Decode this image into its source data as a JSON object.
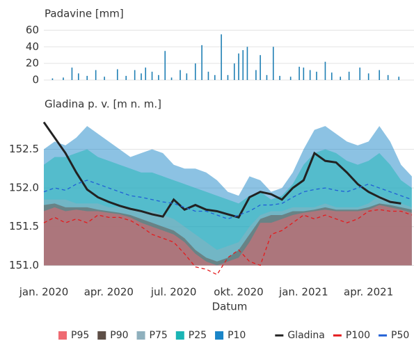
{
  "chart_data": [
    {
      "type": "bar",
      "title": "Padavine [mm]",
      "color": "#1f7fb4",
      "grid": true,
      "xlim": [
        0,
        17.1
      ],
      "ylim": [
        0,
        62
      ],
      "yticks": [
        0,
        20,
        40,
        60
      ],
      "x": [
        0.4,
        0.9,
        1.3,
        1.6,
        2.0,
        2.4,
        2.8,
        3.4,
        3.8,
        4.2,
        4.5,
        4.7,
        5.0,
        5.3,
        5.6,
        5.9,
        6.3,
        6.6,
        7.0,
        7.3,
        7.6,
        7.9,
        8.2,
        8.5,
        8.8,
        9.0,
        9.2,
        9.4,
        9.8,
        10.0,
        10.3,
        10.6,
        10.9,
        11.4,
        11.8,
        12.0,
        12.3,
        12.6,
        13.0,
        13.3,
        13.7,
        14.1,
        14.6,
        15.0,
        15.5,
        15.9,
        16.4
      ],
      "values": [
        2,
        3,
        15,
        8,
        5,
        12,
        4,
        13,
        5,
        12,
        8,
        15,
        10,
        6,
        35,
        3,
        12,
        8,
        20,
        42,
        10,
        6,
        55,
        6,
        20,
        32,
        36,
        40,
        12,
        30,
        6,
        40,
        5,
        4,
        16,
        15,
        12,
        10,
        22,
        9,
        4,
        10,
        15,
        8,
        12,
        6,
        4
      ]
    },
    {
      "type": "area",
      "title": "Gladina p. v. [m n. m.]",
      "x_label": "Datum",
      "grid": true,
      "xlim": [
        0,
        17.1
      ],
      "ylim": [
        150.85,
        152.9
      ],
      "xticks": [
        {
          "value": 0,
          "label": "jan. 2020"
        },
        {
          "value": 3,
          "label": "apr. 2020"
        },
        {
          "value": 6,
          "label": "jul. 2020"
        },
        {
          "value": 9,
          "label": "okt. 2020"
        },
        {
          "value": 12,
          "label": "jan. 2021"
        },
        {
          "value": 15,
          "label": "apr. 2021"
        }
      ],
      "yticks": [
        {
          "value": 151,
          "label": "151.0"
        },
        151.5,
        {
          "value": 152,
          "label": "152.0"
        },
        152.5
      ],
      "x": [
        0,
        0.5,
        1,
        1.5,
        2,
        2.5,
        3,
        3.5,
        4,
        4.5,
        5,
        5.5,
        6,
        6.5,
        7,
        7.5,
        8,
        8.5,
        9,
        9.5,
        10,
        10.5,
        11,
        11.5,
        12,
        12.5,
        13,
        13.5,
        14,
        14.5,
        15,
        15.5,
        16,
        16.5,
        17
      ],
      "series": [
        {
          "name": "P95",
          "color": "#ef6a72",
          "style": "area",
          "values": [
            151.7,
            151.75,
            151.7,
            151.72,
            151.7,
            151.7,
            151.68,
            151.66,
            151.62,
            151.55,
            151.5,
            151.45,
            151.4,
            151.3,
            151.15,
            151.05,
            151.0,
            151.05,
            151.1,
            151.3,
            151.55,
            151.55,
            151.6,
            151.65,
            151.68,
            151.7,
            151.72,
            151.7,
            151.7,
            151.7,
            151.72,
            151.78,
            151.75,
            151.72,
            151.68
          ]
        },
        {
          "name": "P90",
          "color": "#5e4f47",
          "style": "area",
          "values": [
            151.78,
            151.8,
            151.75,
            151.75,
            151.75,
            151.72,
            151.7,
            151.68,
            151.65,
            151.6,
            151.55,
            151.5,
            151.45,
            151.35,
            151.2,
            151.1,
            151.05,
            151.1,
            151.2,
            151.4,
            151.6,
            151.65,
            151.65,
            151.7,
            151.7,
            151.72,
            151.75,
            151.72,
            151.72,
            151.72,
            151.75,
            151.8,
            151.78,
            151.75,
            151.72
          ]
        },
        {
          "name": "P75",
          "color": "#8fb0bd",
          "style": "area",
          "values": [
            151.85,
            151.85,
            151.85,
            151.8,
            151.8,
            151.8,
            151.75,
            151.75,
            151.75,
            151.7,
            151.7,
            151.65,
            151.6,
            151.5,
            151.4,
            151.3,
            151.2,
            151.25,
            151.3,
            151.5,
            151.65,
            151.7,
            151.7,
            151.75,
            151.75,
            151.75,
            151.8,
            151.75,
            151.75,
            151.75,
            151.8,
            151.9,
            151.85,
            151.8,
            151.75
          ]
        },
        {
          "name": "P25",
          "color": "#1bb5b5",
          "style": "area",
          "values": [
            152.3,
            152.4,
            152.4,
            152.45,
            152.5,
            152.4,
            152.35,
            152.3,
            152.25,
            152.2,
            152.2,
            152.15,
            152.1,
            152.05,
            152.0,
            151.95,
            151.9,
            151.85,
            151.8,
            151.9,
            151.95,
            151.85,
            151.9,
            152.05,
            152.3,
            152.45,
            152.5,
            152.45,
            152.35,
            152.3,
            152.35,
            152.45,
            152.3,
            152.1,
            152.0
          ]
        },
        {
          "name": "P10",
          "color": "#1a85c8",
          "style": "area",
          "values": [
            152.5,
            152.6,
            152.55,
            152.65,
            152.8,
            152.7,
            152.6,
            152.5,
            152.4,
            152.45,
            152.5,
            152.45,
            152.3,
            152.25,
            152.25,
            152.2,
            152.1,
            151.95,
            151.9,
            152.15,
            152.1,
            151.95,
            152.0,
            152.2,
            152.5,
            152.75,
            152.8,
            152.7,
            152.6,
            152.55,
            152.6,
            152.8,
            152.6,
            152.3,
            152.15
          ]
        },
        {
          "name": "Gladina",
          "color": "#222222",
          "style": "line",
          "dash": false,
          "values": [
            152.85,
            152.65,
            152.45,
            152.2,
            151.98,
            151.88,
            151.82,
            151.77,
            151.73,
            151.7,
            151.66,
            151.63,
            151.85,
            151.72,
            151.78,
            151.72,
            151.7,
            151.66,
            151.62,
            151.88,
            151.95,
            151.92,
            151.85,
            152.0,
            152.1,
            152.45,
            152.35,
            152.33,
            152.2,
            152.05,
            151.95,
            151.88,
            151.82,
            151.8,
            null
          ]
        },
        {
          "name": "P100",
          "color": "#e41a1c",
          "style": "line",
          "dash": true,
          "values": [
            151.55,
            151.62,
            151.55,
            151.6,
            151.55,
            151.65,
            151.62,
            151.62,
            151.58,
            151.5,
            151.4,
            151.35,
            151.3,
            151.15,
            150.98,
            150.95,
            150.88,
            151.1,
            151.2,
            151.05,
            151.0,
            151.4,
            151.45,
            151.55,
            151.65,
            151.6,
            151.65,
            151.6,
            151.55,
            151.6,
            151.7,
            151.72,
            151.7,
            151.7,
            151.65
          ]
        },
        {
          "name": "P50",
          "color": "#1f5fd6",
          "style": "line",
          "dash": true,
          "values": [
            151.95,
            152.0,
            151.97,
            152.05,
            152.1,
            152.05,
            152.0,
            151.95,
            151.9,
            151.88,
            151.85,
            151.82,
            151.8,
            151.75,
            151.7,
            151.7,
            151.65,
            151.6,
            151.65,
            151.7,
            151.78,
            151.78,
            151.8,
            151.88,
            151.95,
            151.98,
            152.0,
            151.97,
            151.95,
            152.0,
            152.05,
            152.0,
            151.95,
            151.9,
            151.85
          ]
        }
      ]
    }
  ]
}
